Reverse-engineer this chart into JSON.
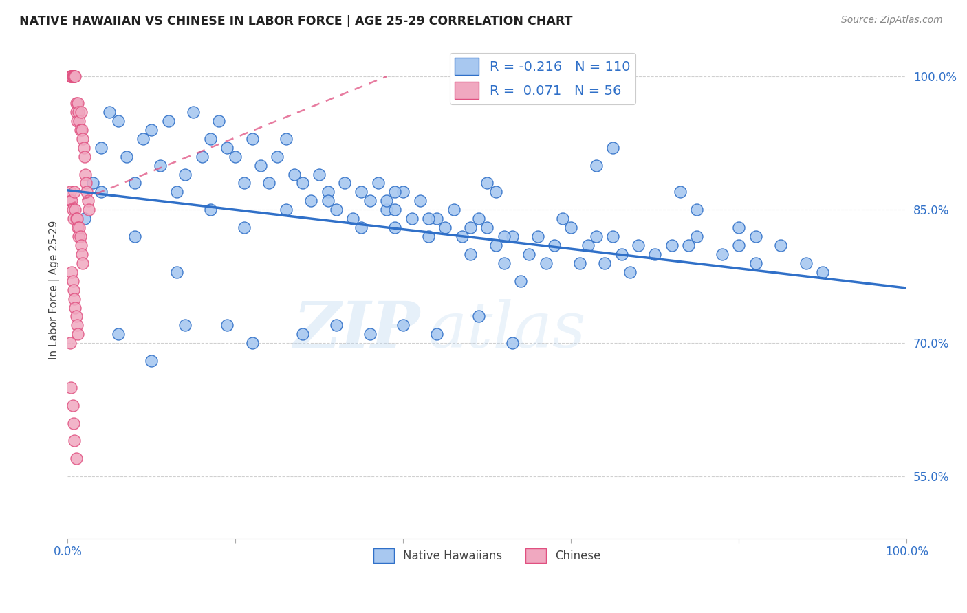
{
  "title": "NATIVE HAWAIIAN VS CHINESE IN LABOR FORCE | AGE 25-29 CORRELATION CHART",
  "source": "Source: ZipAtlas.com",
  "ylabel": "In Labor Force | Age 25-29",
  "xmin": 0.0,
  "xmax": 1.0,
  "ymin": 0.48,
  "ymax": 1.04,
  "yticks": [
    0.55,
    0.7,
    0.85,
    1.0
  ],
  "ytick_labels": [
    "55.0%",
    "70.0%",
    "85.0%",
    "100.0%"
  ],
  "xticks": [
    0.0,
    0.2,
    0.4,
    0.6,
    0.8,
    1.0
  ],
  "xtick_labels": [
    "0.0%",
    "",
    "",
    "",
    "",
    "100.0%"
  ],
  "legend_blue_r": "-0.216",
  "legend_blue_n": "110",
  "legend_pink_r": "0.071",
  "legend_pink_n": "56",
  "blue_color": "#a8c8f0",
  "pink_color": "#f0a8c0",
  "blue_line_color": "#3070c8",
  "pink_line_color": "#e05080",
  "watermark": "ZIPatlas",
  "blue_line_x0": 0.0,
  "blue_line_y0": 0.872,
  "blue_line_x1": 1.0,
  "blue_line_y1": 0.762,
  "pink_line_x0": 0.0,
  "pink_line_y0": 0.855,
  "pink_line_x1": 0.38,
  "pink_line_y1": 1.0,
  "blue_scatter_x": [
    0.02,
    0.03,
    0.04,
    0.05,
    0.06,
    0.07,
    0.08,
    0.09,
    0.1,
    0.11,
    0.12,
    0.13,
    0.14,
    0.15,
    0.16,
    0.17,
    0.18,
    0.19,
    0.2,
    0.21,
    0.22,
    0.23,
    0.24,
    0.25,
    0.26,
    0.27,
    0.28,
    0.29,
    0.3,
    0.31,
    0.32,
    0.33,
    0.34,
    0.35,
    0.36,
    0.37,
    0.38,
    0.39,
    0.4,
    0.41,
    0.42,
    0.43,
    0.44,
    0.45,
    0.46,
    0.47,
    0.48,
    0.49,
    0.5,
    0.51,
    0.52,
    0.53,
    0.54,
    0.55,
    0.56,
    0.57,
    0.58,
    0.59,
    0.6,
    0.61,
    0.62,
    0.63,
    0.64,
    0.65,
    0.66,
    0.67,
    0.68,
    0.7,
    0.72,
    0.74,
    0.75,
    0.78,
    0.8,
    0.82,
    0.85,
    0.88,
    0.9,
    0.06,
    0.1,
    0.14,
    0.19,
    0.22,
    0.28,
    0.32,
    0.36,
    0.4,
    0.44,
    0.49,
    0.53,
    0.04,
    0.08,
    0.13,
    0.17,
    0.21,
    0.26,
    0.31,
    0.35,
    0.39,
    0.43,
    0.48,
    0.52,
    0.38,
    0.39,
    0.5,
    0.51,
    0.63,
    0.65,
    0.73,
    0.75,
    0.8,
    0.82
  ],
  "blue_scatter_y": [
    0.84,
    0.88,
    0.92,
    0.96,
    0.95,
    0.91,
    0.88,
    0.93,
    0.94,
    0.9,
    0.95,
    0.87,
    0.89,
    0.96,
    0.91,
    0.93,
    0.95,
    0.92,
    0.91,
    0.88,
    0.93,
    0.9,
    0.88,
    0.91,
    0.93,
    0.89,
    0.88,
    0.86,
    0.89,
    0.87,
    0.85,
    0.88,
    0.84,
    0.87,
    0.86,
    0.88,
    0.85,
    0.83,
    0.87,
    0.84,
    0.86,
    0.82,
    0.84,
    0.83,
    0.85,
    0.82,
    0.8,
    0.84,
    0.83,
    0.81,
    0.79,
    0.82,
    0.77,
    0.8,
    0.82,
    0.79,
    0.81,
    0.84,
    0.83,
    0.79,
    0.81,
    0.82,
    0.79,
    0.82,
    0.8,
    0.78,
    0.81,
    0.8,
    0.81,
    0.81,
    0.82,
    0.8,
    0.81,
    0.79,
    0.81,
    0.79,
    0.78,
    0.71,
    0.68,
    0.72,
    0.72,
    0.7,
    0.71,
    0.72,
    0.71,
    0.72,
    0.71,
    0.73,
    0.7,
    0.87,
    0.82,
    0.78,
    0.85,
    0.83,
    0.85,
    0.86,
    0.83,
    0.85,
    0.84,
    0.83,
    0.82,
    0.86,
    0.87,
    0.88,
    0.87,
    0.9,
    0.92,
    0.87,
    0.85,
    0.83,
    0.82
  ],
  "pink_scatter_x": [
    0.003,
    0.004,
    0.005,
    0.005,
    0.006,
    0.007,
    0.007,
    0.008,
    0.009,
    0.01,
    0.01,
    0.011,
    0.012,
    0.013,
    0.014,
    0.015,
    0.016,
    0.017,
    0.018,
    0.019,
    0.02,
    0.021,
    0.022,
    0.023,
    0.024,
    0.025,
    0.003,
    0.004,
    0.005,
    0.006,
    0.007,
    0.008,
    0.009,
    0.01,
    0.011,
    0.012,
    0.013,
    0.014,
    0.015,
    0.016,
    0.017,
    0.018,
    0.005,
    0.006,
    0.007,
    0.008,
    0.009,
    0.01,
    0.011,
    0.012,
    0.003,
    0.004,
    0.006,
    0.007,
    0.008,
    0.01
  ],
  "pink_scatter_y": [
    1.0,
    1.0,
    1.0,
    1.0,
    1.0,
    1.0,
    1.0,
    1.0,
    1.0,
    0.97,
    0.96,
    0.95,
    0.97,
    0.96,
    0.95,
    0.94,
    0.96,
    0.94,
    0.93,
    0.92,
    0.91,
    0.89,
    0.88,
    0.87,
    0.86,
    0.85,
    0.87,
    0.86,
    0.86,
    0.85,
    0.84,
    0.87,
    0.85,
    0.84,
    0.84,
    0.83,
    0.82,
    0.83,
    0.82,
    0.81,
    0.8,
    0.79,
    0.78,
    0.77,
    0.76,
    0.75,
    0.74,
    0.73,
    0.72,
    0.71,
    0.7,
    0.65,
    0.63,
    0.61,
    0.59,
    0.57
  ]
}
